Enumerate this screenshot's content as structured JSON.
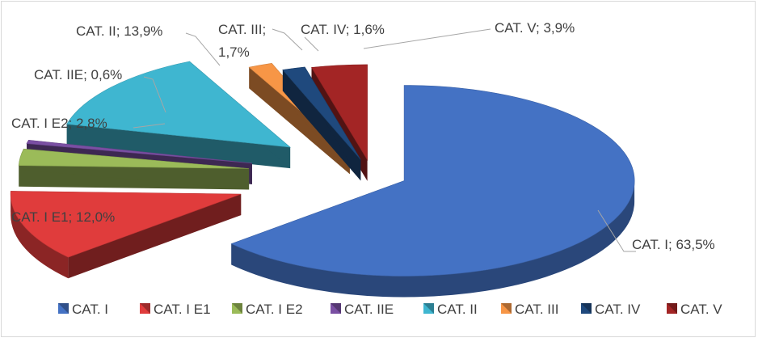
{
  "chart_data": {
    "type": "pie",
    "title": "",
    "categories": [
      "CAT. I",
      "CAT. I E1",
      "CAT. I E2",
      "CAT. IIE",
      "CAT. II",
      "CAT. III",
      "CAT. IV",
      "CAT. V"
    ],
    "values": [
      63.5,
      12.0,
      2.8,
      0.6,
      13.9,
      1.7,
      1.6,
      3.9
    ],
    "labels": [
      [
        "CAT. I; 63,5%"
      ],
      [
        "CAT. I E1; 12,0%"
      ],
      [
        "CAT. I E2; 2,8%"
      ],
      [
        "CAT. IIE; 0,6%"
      ],
      [
        "CAT. II; 13,9%"
      ],
      [
        "CAT. III;",
        "1,7%"
      ],
      [
        "CAT. IV; 1,6%"
      ],
      [
        "CAT. V; 3,9%"
      ]
    ],
    "colors": [
      "#4472c4",
      "#e03c3c",
      "#9bbb59",
      "#7a4fa3",
      "#3fb6d0",
      "#f79646",
      "#1f497d",
      "#a32525"
    ],
    "exploded": true,
    "style": "3d",
    "legend_position": "bottom"
  }
}
